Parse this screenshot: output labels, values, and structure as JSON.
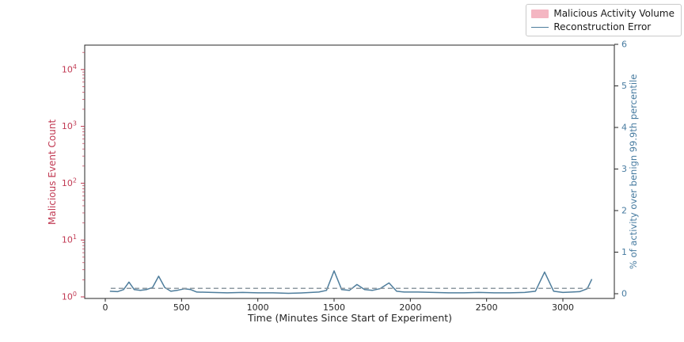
{
  "figure": {
    "background": "#ffffff",
    "legend": {
      "items": [
        {
          "label": "Malicious Activity Volume",
          "swatch": "patch",
          "color": "#f4b6c2"
        },
        {
          "label": "Reconstruction Error",
          "swatch": "line",
          "color": "#4e7d9c"
        }
      ]
    }
  },
  "chart_data": {
    "type": "line",
    "title": "",
    "xlabel": "Time (Minutes Since Start of Experiment)",
    "ylabel_left": "Malicious Event Count",
    "ylabel_right": "% of activity over benign 99.9th percentile",
    "x_ticks": [
      0,
      500,
      1000,
      1500,
      2000,
      2500,
      3000
    ],
    "xlim": [
      -135,
      3335
    ],
    "left_axis": {
      "scale": "log",
      "tick_exponents": [
        0,
        1,
        2,
        3,
        4
      ],
      "color": "#c13a53"
    },
    "right_axis": {
      "ticks": [
        0,
        1,
        2,
        3,
        4,
        5,
        6
      ],
      "ylim": [
        -0.12,
        6.1
      ],
      "color": "#477ba0"
    },
    "grid": false,
    "legend_position": "upper right (outside top of axes)",
    "series": [
      {
        "name": "Reconstruction Error",
        "axis": "right",
        "style": "solid",
        "color": "#4e7d9c",
        "x": [
          30,
          80,
          120,
          155,
          190,
          230,
          270,
          310,
          350,
          390,
          430,
          470,
          520,
          560,
          600,
          700,
          800,
          900,
          1000,
          1100,
          1200,
          1300,
          1400,
          1450,
          1500,
          1550,
          1600,
          1650,
          1700,
          1750,
          1800,
          1860,
          1910,
          1960,
          2050,
          2150,
          2250,
          2350,
          2450,
          2550,
          2650,
          2750,
          2820,
          2880,
          2940,
          3000,
          3060,
          3110,
          3160,
          3190
        ],
        "y": [
          0.06,
          0.05,
          0.1,
          0.28,
          0.1,
          0.08,
          0.1,
          0.15,
          0.42,
          0.15,
          0.06,
          0.08,
          0.12,
          0.1,
          0.04,
          0.03,
          0.02,
          0.03,
          0.02,
          0.02,
          0.01,
          0.02,
          0.04,
          0.08,
          0.55,
          0.1,
          0.08,
          0.22,
          0.1,
          0.08,
          0.12,
          0.26,
          0.06,
          0.04,
          0.04,
          0.03,
          0.02,
          0.02,
          0.03,
          0.02,
          0.02,
          0.03,
          0.06,
          0.52,
          0.06,
          0.03,
          0.04,
          0.05,
          0.12,
          0.35
        ]
      },
      {
        "name": "threshold",
        "axis": "right",
        "style": "dashed",
        "color": "#8e99a1",
        "x": [
          36,
          3190
        ],
        "y": [
          0.13,
          0.13
        ]
      },
      {
        "name": "Malicious Activity Volume",
        "axis": "left",
        "style": "bar",
        "color": "#f4b6c2",
        "note_visible_bars": "none visible above log-axis floor",
        "x": [],
        "y": []
      }
    ]
  }
}
